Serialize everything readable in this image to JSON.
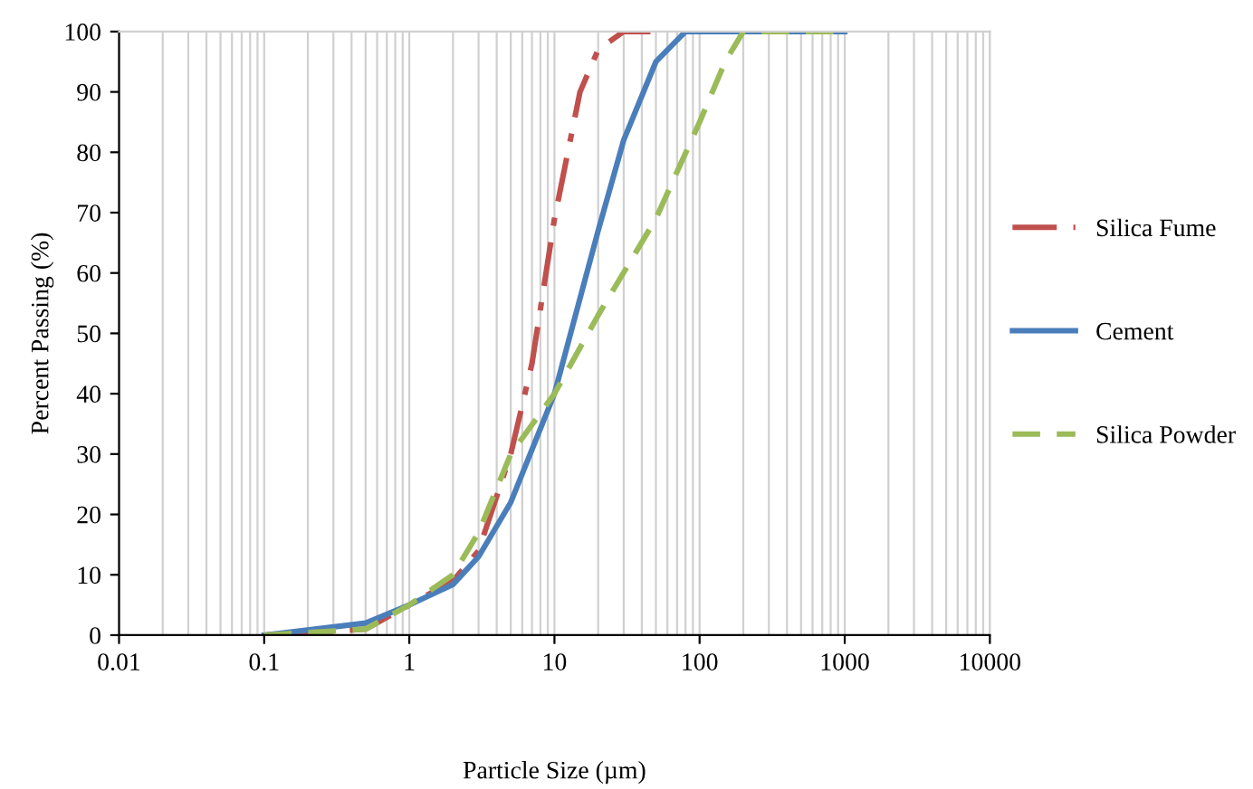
{
  "chart_data": {
    "type": "line",
    "xlabel": "Particle Size (µm)",
    "ylabel": "Percent Passing (%)",
    "log": "x",
    "xlim": [
      0.01,
      10000
    ],
    "xticks": [
      0.01,
      0.1,
      1,
      10,
      100,
      1000,
      10000
    ],
    "ylim": [
      0,
      100
    ],
    "yticks": [
      0,
      10,
      20,
      30,
      40,
      50,
      60,
      70,
      80,
      90,
      100
    ],
    "grid": "x",
    "legend": "right",
    "marker": "none",
    "series": [
      {
        "name": "Silica Fume",
        "color": "#c0504d",
        "line_style": "dashdot",
        "x": [
          0.1,
          0.5,
          1,
          2,
          3,
          5,
          7,
          10,
          15,
          20,
          30,
          50
        ],
        "values": [
          0,
          1,
          5,
          9,
          14,
          30,
          45,
          69,
          90,
          97,
          100,
          100
        ]
      },
      {
        "name": "Cement",
        "color": "#4a7ebb",
        "line_style": "solid",
        "x": [
          0.1,
          0.5,
          1,
          2,
          3,
          5,
          10,
          20,
          30,
          50,
          80,
          100,
          1000
        ],
        "values": [
          0,
          2,
          5,
          8.4,
          13,
          22,
          40,
          67,
          82,
          95,
          100,
          100,
          100
        ]
      },
      {
        "name": "Silica Powder",
        "color": "#9bbb59",
        "line_style": "dashed",
        "x": [
          0.1,
          0.5,
          1,
          2,
          3,
          5,
          10,
          20,
          50,
          100,
          150,
          200,
          1000
        ],
        "values": [
          0,
          1,
          5,
          10,
          17,
          30,
          40,
          53,
          69,
          85,
          95,
          100,
          100
        ]
      }
    ]
  }
}
